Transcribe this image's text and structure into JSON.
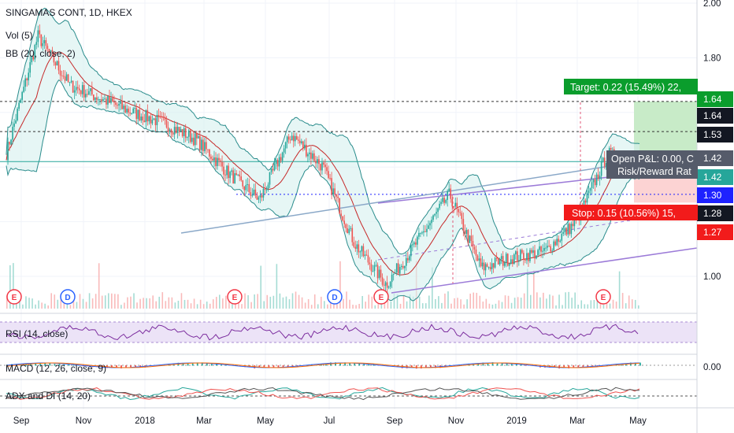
{
  "header": {
    "symbol": "SINGAMAS CONT, 1D, HKEX",
    "vol_label": "Vol (5)",
    "bb_label": "BB (20, close, 2)"
  },
  "panes": {
    "rsi_label": "RSI (14, close)",
    "macd_label": "MACD (12, 26, close, 9)",
    "adx_label": "ADX and DI (14, 20)",
    "macd_tick": "0.00"
  },
  "trade": {
    "target_label": "Target: 0.22 (15.49%) 22,",
    "stop_label": "Stop: 0.15 (10.56%) 15,",
    "open_pl_label": "Open P&L: 0.00, C",
    "rr_label": "Risk/Reward Rat",
    "target": 1.64,
    "entry": 1.42,
    "stop": 1.27,
    "colors": {
      "target": "#0a9d2c",
      "stop": "#f21b1b",
      "profit_zone": "#c8ebc8",
      "loss_zone": "#fcd3d3"
    }
  },
  "price_tags": [
    {
      "text": "1.64",
      "value": 1.64,
      "bg": "#0a9d2c"
    },
    {
      "text": "1.64",
      "value": 1.64,
      "bg": "#131722"
    },
    {
      "text": "1.53",
      "value": 1.53,
      "bg": "#131722"
    },
    {
      "text": "1.42",
      "value": 1.42,
      "bg": "#555b6a"
    },
    {
      "text": "1.42",
      "value": 1.42,
      "bg": "#26a69a"
    },
    {
      "text": "1.30",
      "value": 1.3,
      "bg": "#1e22ff"
    },
    {
      "text": "1.28",
      "value": 1.28,
      "bg": "#131722"
    },
    {
      "text": "1.27",
      "value": 1.27,
      "bg": "#f21b1b"
    }
  ],
  "events": [
    {
      "letter": "E",
      "month": "Aug",
      "color": "#f23645"
    },
    {
      "letter": "D",
      "month": "Oct",
      "color": "#2962ff"
    },
    {
      "letter": "E",
      "month": "Mar",
      "color": "#f23645"
    },
    {
      "letter": "D",
      "month": "Jul",
      "color": "#2962ff"
    },
    {
      "letter": "E",
      "month": "Aug",
      "color": "#f23645"
    },
    {
      "letter": "E",
      "month": "Mar",
      "color": "#f23645"
    }
  ],
  "chart_data": {
    "type": "candlestick",
    "title": "SINGAMAS CONT, 1D, HKEX",
    "xlabel": "",
    "ylabel": "",
    "x_ticks": [
      "Sep",
      "Nov",
      "2018",
      "Mar",
      "May",
      "Jul",
      "Sep",
      "Nov",
      "2019",
      "Mar",
      "May"
    ],
    "y_ticks": [
      2.0,
      1.8,
      1.64,
      1.53,
      1.42,
      1.3,
      1.28,
      1.27,
      1.0
    ],
    "ylim": [
      0.9,
      2.0
    ],
    "x": [
      "2017-08",
      "2017-09",
      "2017-10",
      "2017-11",
      "2017-12",
      "2018-01",
      "2018-02",
      "2018-03",
      "2018-04",
      "2018-05",
      "2018-06",
      "2018-07",
      "2018-08",
      "2018-09",
      "2018-10",
      "2018-11",
      "2018-12",
      "2019-01",
      "2019-02",
      "2019-03",
      "2019-04"
    ],
    "series": [
      {
        "name": "Close",
        "values": [
          1.45,
          1.88,
          1.7,
          1.65,
          1.6,
          1.56,
          1.5,
          1.38,
          1.28,
          1.52,
          1.4,
          1.12,
          0.97,
          1.13,
          1.3,
          1.03,
          1.07,
          1.09,
          1.2,
          1.45,
          1.4
        ]
      }
    ],
    "indicators": [
      "Vol (5)",
      "BB (20, close, 2)",
      "RSI (14, close)",
      "MACD (12, 26, close, 9)",
      "ADX and DI (14, 20)"
    ],
    "grid": true,
    "legend": "top-left"
  }
}
